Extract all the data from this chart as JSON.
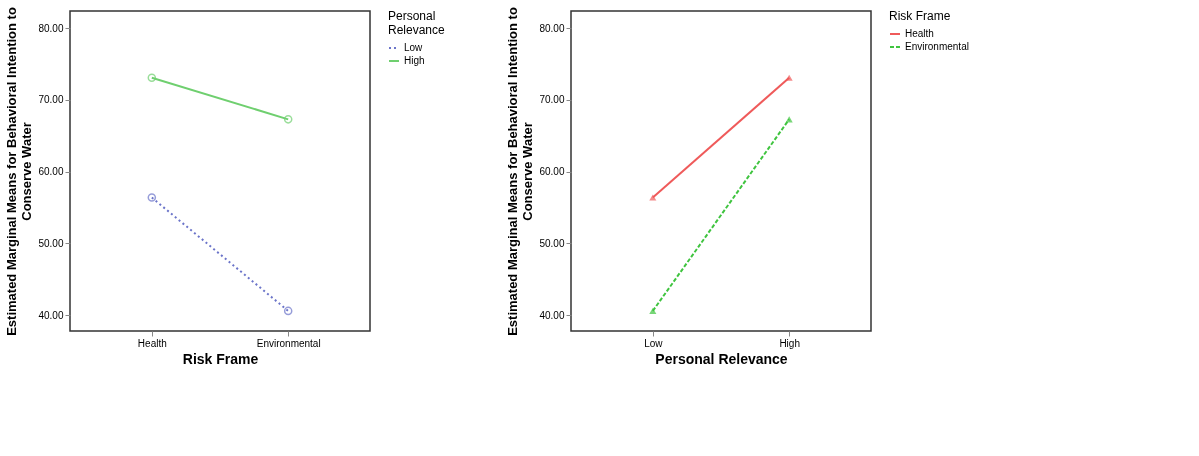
{
  "chart_data": [
    {
      "type": "line",
      "xlabel": "Risk Frame",
      "ylabel": "Estimated Marginal Means for Behavioral Intention to Conserve Water",
      "legend_title": "Personal Relevance",
      "categories": [
        "Health",
        "Environmental"
      ],
      "series": [
        {
          "name": "Low",
          "color": "#6b74c9",
          "values": [
            56.4,
            40.6
          ],
          "line_style": "dotted"
        },
        {
          "name": "High",
          "color": "#6fcf6f",
          "values": [
            73.1,
            67.3
          ],
          "line_style": "solid"
        }
      ],
      "ylim": [
        37.8,
        82.4
      ],
      "yticks": [
        {
          "value": 40,
          "label": "40.00"
        },
        {
          "value": 50,
          "label": "50.00"
        },
        {
          "value": 60,
          "label": "60.00"
        },
        {
          "value": 70,
          "label": "70.00"
        },
        {
          "value": 80,
          "label": "80.00"
        }
      ],
      "marker": "circle",
      "legend": "top right",
      "grid": false
    },
    {
      "type": "line",
      "xlabel": "Personal Relevance",
      "ylabel": "Estimated Marginal Means for Behavioral Intention to Conserve Water",
      "legend_title": "Risk Frame",
      "categories": [
        "Low",
        "High"
      ],
      "series": [
        {
          "name": "Health",
          "color": "#ef5a5a",
          "values": [
            56.4,
            73.1
          ],
          "line_style": "solid"
        },
        {
          "name": "Environmental",
          "color": "#3fc43f",
          "values": [
            40.6,
            67.3
          ],
          "line_style": "dashed"
        }
      ],
      "ylim": [
        37.8,
        82.4
      ],
      "yticks": [
        {
          "value": 40,
          "label": "40.00"
        },
        {
          "value": 50,
          "label": "50.00"
        },
        {
          "value": 60,
          "label": "60.00"
        },
        {
          "value": 70,
          "label": "70.00"
        },
        {
          "value": 80,
          "label": "80.00"
        }
      ],
      "marker": "triangle",
      "legend": "top right",
      "grid": false
    }
  ]
}
